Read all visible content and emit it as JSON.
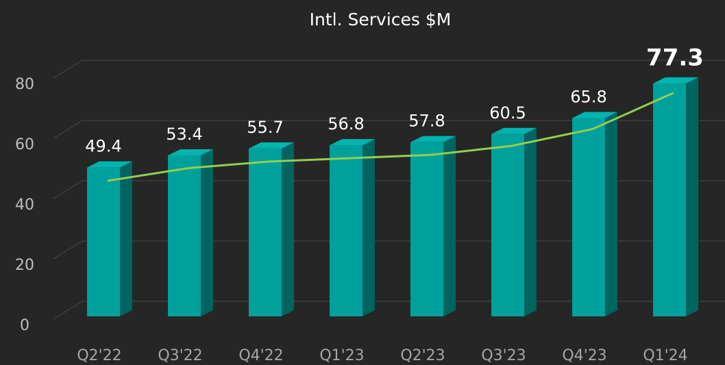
{
  "chart_data": {
    "type": "bar3d",
    "title": "Intl. Services $M",
    "categories": [
      "Q2'22",
      "Q3'22",
      "Q4'22",
      "Q1'23",
      "Q2'23",
      "Q3'23",
      "Q4'23",
      "Q1'24"
    ],
    "values": [
      49.4,
      53.4,
      55.7,
      56.8,
      57.8,
      60.5,
      65.8,
      77.3
    ],
    "color": "#00a19c",
    "highlight": 7,
    "trend": {
      "color": "#92d050",
      "values": [
        45,
        49.2,
        51.4,
        52.5,
        53.6,
        56.6,
        62.2,
        74.2
      ]
    },
    "ylim": [
      0,
      80
    ],
    "yticks": [
      0,
      20,
      40,
      60,
      80
    ],
    "grid": true
  }
}
